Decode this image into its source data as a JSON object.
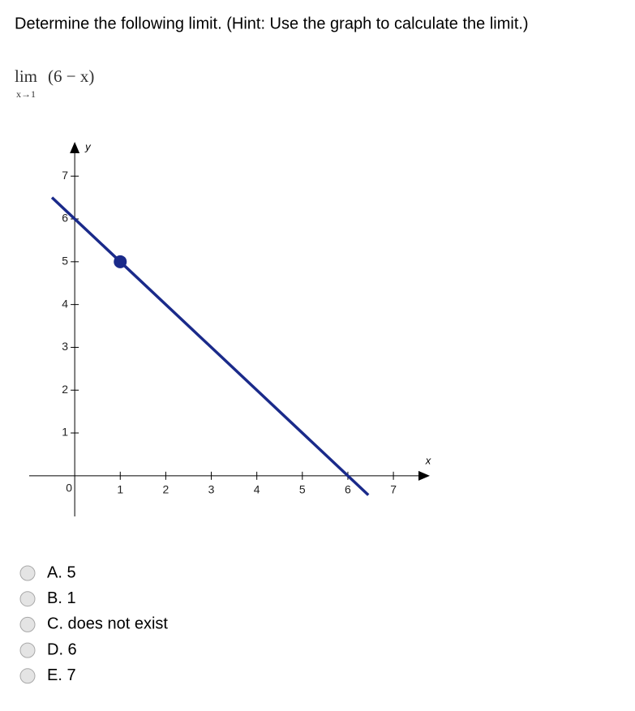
{
  "question": "Determine the following limit. (Hint: Use the graph to calculate the limit.)",
  "expression": {
    "operator": "lim",
    "subscript": "x→1",
    "argument": "(6 − x)"
  },
  "graph": {
    "type": "line",
    "x_label": "x",
    "y_label": "y",
    "x": [
      -0.5,
      6.45
    ],
    "values": [
      6.5,
      -0.45
    ],
    "point": {
      "x": 1,
      "y": 5
    },
    "xlim": [
      -1,
      7.8
    ],
    "ylim": [
      -0.95,
      7.8
    ],
    "xticks": [
      1,
      2,
      3,
      4,
      5,
      6,
      7
    ],
    "yticks": [
      1,
      2,
      3,
      4,
      5,
      6,
      7
    ],
    "origin_tick": 0,
    "color": "#1a2a8a"
  },
  "options": [
    "A. 5",
    "B. 1",
    "C. does not exist",
    "D. 6",
    "E. 7"
  ]
}
